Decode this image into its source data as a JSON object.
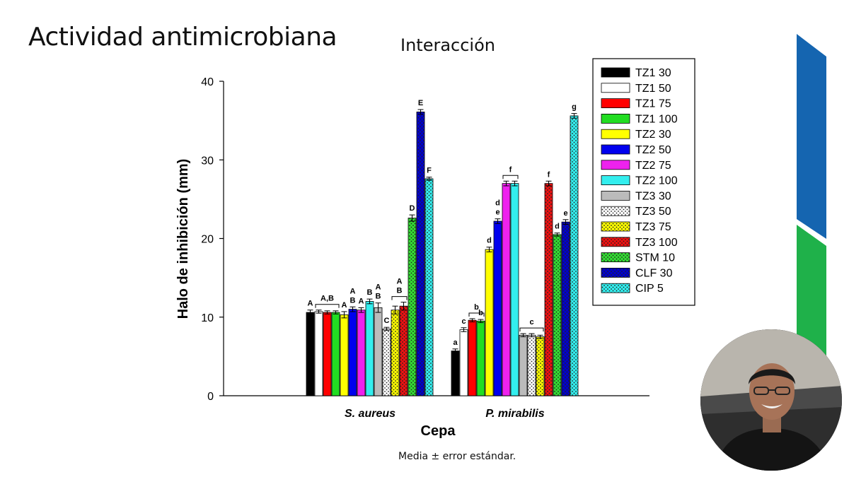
{
  "slide": {
    "title": "Actividad antimicrobiana",
    "footnote": "Media ± error estándar."
  },
  "colors": {
    "accent_blue": "#1565b0",
    "accent_green": "#1fb14a"
  },
  "chart_data": {
    "type": "bar",
    "title": "Interacción",
    "xlabel": "Cepa",
    "ylabel": "Halo de inhibición (mm)",
    "ylim": [
      0,
      40
    ],
    "yticks": [
      0,
      10,
      20,
      30,
      40
    ],
    "categories": [
      "S. aureus",
      "P. mirabilis"
    ],
    "legend_position": "top-right",
    "series": [
      {
        "name": "TZ1 30",
        "color": "#000000",
        "pattern": "solid",
        "values": [
          10.6,
          5.7
        ],
        "errors": [
          0.3,
          0.25
        ],
        "labels": [
          "A",
          "a"
        ]
      },
      {
        "name": "TZ1 50",
        "color": "#ffffff",
        "pattern": "solid",
        "values": [
          10.7,
          8.4
        ],
        "errors": [
          0.2,
          0.25
        ],
        "labels": [
          "",
          "c"
        ]
      },
      {
        "name": "TZ1 75",
        "color": "#ff0000",
        "pattern": "solid",
        "values": [
          10.6,
          9.6
        ],
        "errors": [
          0.2,
          0.2
        ],
        "labels": [
          "",
          ""
        ]
      },
      {
        "name": "TZ1 100",
        "color": "#22dd22",
        "pattern": "solid",
        "values": [
          10.6,
          9.5
        ],
        "errors": [
          0.2,
          0.2
        ],
        "labels": [
          "",
          "b"
        ]
      },
      {
        "name": "TZ2 30",
        "color": "#ffff00",
        "pattern": "solid",
        "values": [
          10.3,
          18.6
        ],
        "errors": [
          0.4,
          0.3
        ],
        "labels": [
          "A",
          "d"
        ]
      },
      {
        "name": "TZ2 50",
        "color": "#0000ee",
        "pattern": "solid",
        "values": [
          11.0,
          22.2
        ],
        "errors": [
          0.3,
          0.3
        ],
        "labels": [
          "A\nB",
          "d\ne"
        ]
      },
      {
        "name": "TZ2 75",
        "color": "#ee22ee",
        "pattern": "solid",
        "values": [
          10.9,
          27.0
        ],
        "errors": [
          0.3,
          0.3
        ],
        "labels": [
          "A",
          ""
        ]
      },
      {
        "name": "TZ2 100",
        "color": "#33eeee",
        "pattern": "solid",
        "values": [
          12.0,
          27.0
        ],
        "errors": [
          0.3,
          0.3
        ],
        "labels": [
          "B",
          ""
        ]
      },
      {
        "name": "TZ3 30",
        "color": "#bbbbbb",
        "pattern": "solid",
        "values": [
          11.2,
          7.7
        ],
        "errors": [
          0.6,
          0.2
        ],
        "labels": [
          "A\nB",
          ""
        ]
      },
      {
        "name": "TZ3 50",
        "color": "#ffffff",
        "pattern": "dots",
        "values": [
          8.5,
          7.7
        ],
        "errors": [
          0.2,
          0.2
        ],
        "labels": [
          "C",
          ""
        ]
      },
      {
        "name": "TZ3 75",
        "color": "#ffff00",
        "pattern": "dots",
        "values": [
          10.9,
          7.5
        ],
        "errors": [
          0.5,
          0.2
        ],
        "labels": [
          "",
          ""
        ]
      },
      {
        "name": "TZ3 100",
        "color": "#ee1111",
        "pattern": "dots",
        "values": [
          11.4,
          27.0
        ],
        "errors": [
          0.5,
          0.3
        ],
        "labels": [
          "",
          "f"
        ]
      },
      {
        "name": "STM 10",
        "color": "#33dd33",
        "pattern": "dots",
        "values": [
          22.6,
          20.5
        ],
        "errors": [
          0.4,
          0.2
        ],
        "labels": [
          "D",
          "d"
        ]
      },
      {
        "name": "CLF 30",
        "color": "#0000cc",
        "pattern": "dots",
        "values": [
          36.1,
          22.1
        ],
        "errors": [
          0.3,
          0.3
        ],
        "labels": [
          "E",
          "e"
        ]
      },
      {
        "name": "CIP 5",
        "color": "#33eeee",
        "pattern": "dots",
        "values": [
          27.6,
          35.6
        ],
        "errors": [
          0.2,
          0.3
        ],
        "labels": [
          "F",
          "g"
        ]
      }
    ],
    "group_brackets": [
      {
        "category": "S. aureus",
        "from": "TZ1 50",
        "to": "TZ1 100",
        "label": "A,B"
      },
      {
        "category": "S. aureus",
        "from": "TZ3 75",
        "to": "TZ3 100",
        "label": "A\nB"
      },
      {
        "category": "P. mirabilis",
        "from": "TZ1 75",
        "to": "TZ1 100",
        "label": "b"
      },
      {
        "category": "P. mirabilis",
        "from": "TZ2 75",
        "to": "TZ2 100",
        "label": "f"
      },
      {
        "category": "P. mirabilis",
        "from": "TZ3 30",
        "to": "TZ3 75",
        "label": "c"
      }
    ]
  }
}
